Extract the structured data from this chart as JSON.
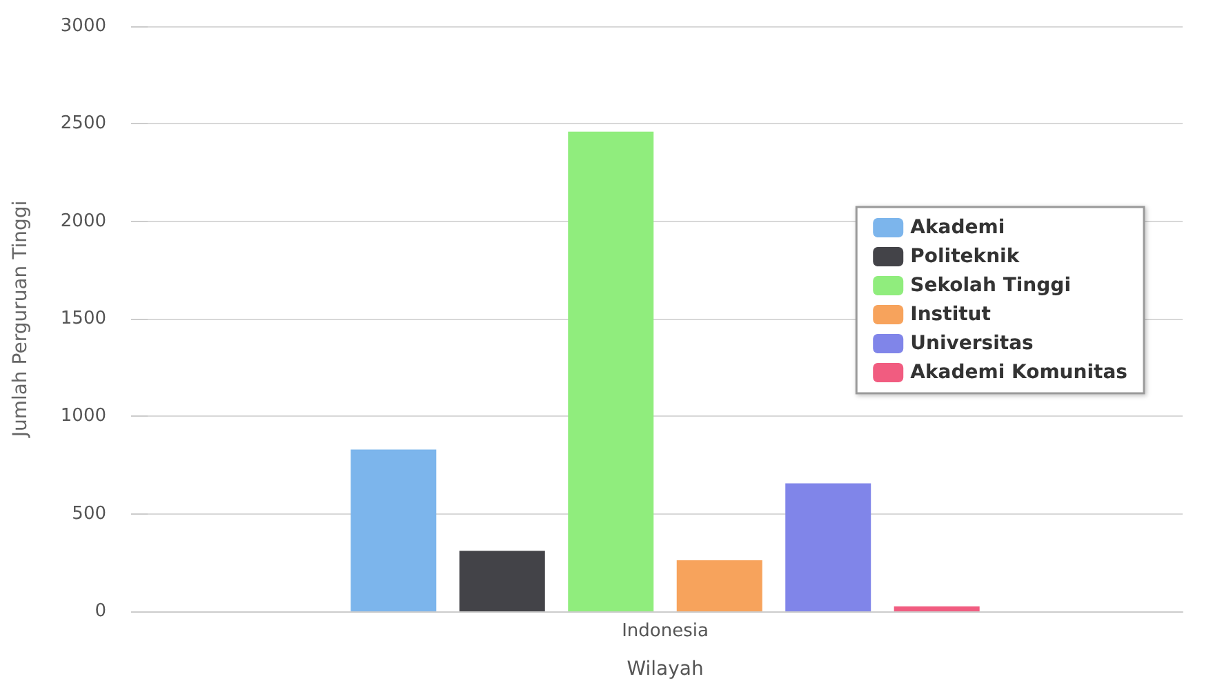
{
  "chart_data": {
    "type": "bar",
    "xlabel": "Wilayah",
    "ylabel": "Jumlah Perguruan Tinggi",
    "categories": [
      "Indonesia"
    ],
    "series": [
      {
        "name": "Akademi",
        "color": "#7cb5ec",
        "values": [
          830
        ]
      },
      {
        "name": "Politeknik",
        "color": "#434348",
        "values": [
          310
        ]
      },
      {
        "name": "Sekolah Tinggi",
        "color": "#90ed7d",
        "values": [
          2460
        ]
      },
      {
        "name": "Institut",
        "color": "#f7a35c",
        "values": [
          262
        ]
      },
      {
        "name": "Universitas",
        "color": "#8085e9",
        "values": [
          656
        ]
      },
      {
        "name": "Akademi Komunitas",
        "color": "#f15c80",
        "values": [
          26
        ]
      }
    ],
    "ylim": [
      0,
      3000
    ],
    "yticks": [
      0,
      500,
      1000,
      1500,
      2000,
      2500,
      3000
    ],
    "grid": "y",
    "legend": "right"
  }
}
